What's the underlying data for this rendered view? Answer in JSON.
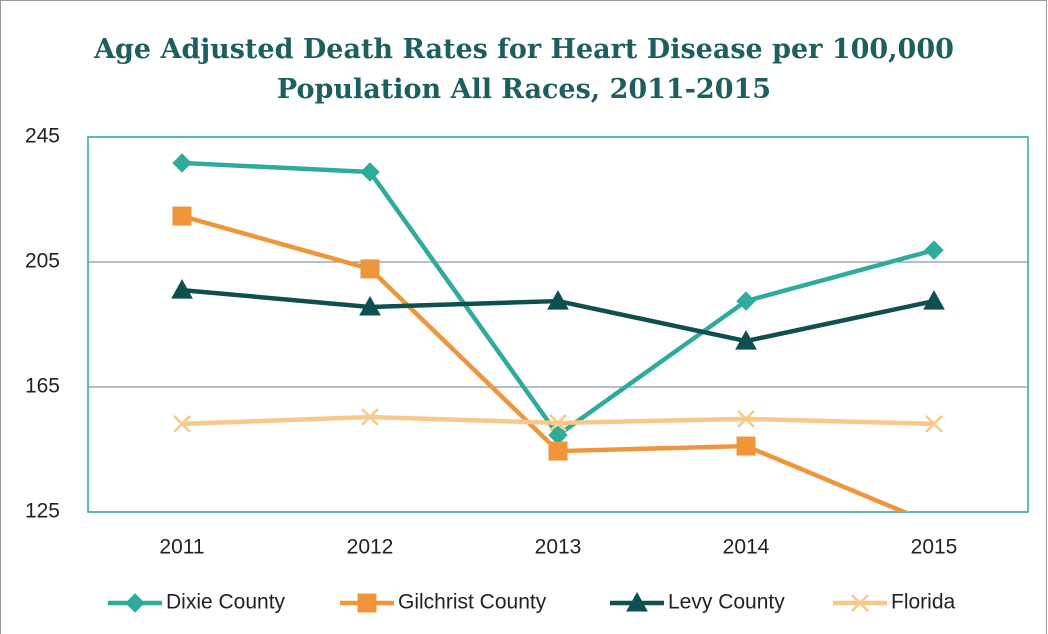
{
  "chart_data": {
    "type": "line",
    "title": "Age Adjusted Death Rates for Heart Disease per 100,000 Population All Races, 2011-2015",
    "categories": [
      "2011",
      "2012",
      "2013",
      "2014",
      "2015"
    ],
    "series": [
      {
        "name": "Dixie County",
        "color": "#2eab9b",
        "marker": "diamond",
        "values": [
          236.7,
          233.8,
          149.6,
          192.5,
          208.8
        ]
      },
      {
        "name": "Gilchrist County",
        "color": "#f0953a",
        "marker": "square",
        "values": [
          219.7,
          202.8,
          144.5,
          146.1,
          121
        ]
      },
      {
        "name": "Levy County",
        "color": "#0e4f50",
        "marker": "triangle",
        "values": [
          196,
          190.6,
          192.5,
          179.7,
          192.5
        ]
      },
      {
        "name": "Florida",
        "color": "#f8c98a",
        "marker": "x",
        "values": [
          153.2,
          155.4,
          153.5,
          154.8,
          153.2
        ]
      }
    ],
    "ylim": [
      125,
      245
    ],
    "yticks": [
      125,
      165,
      205,
      245
    ],
    "grid": true,
    "legend": "bottom"
  }
}
